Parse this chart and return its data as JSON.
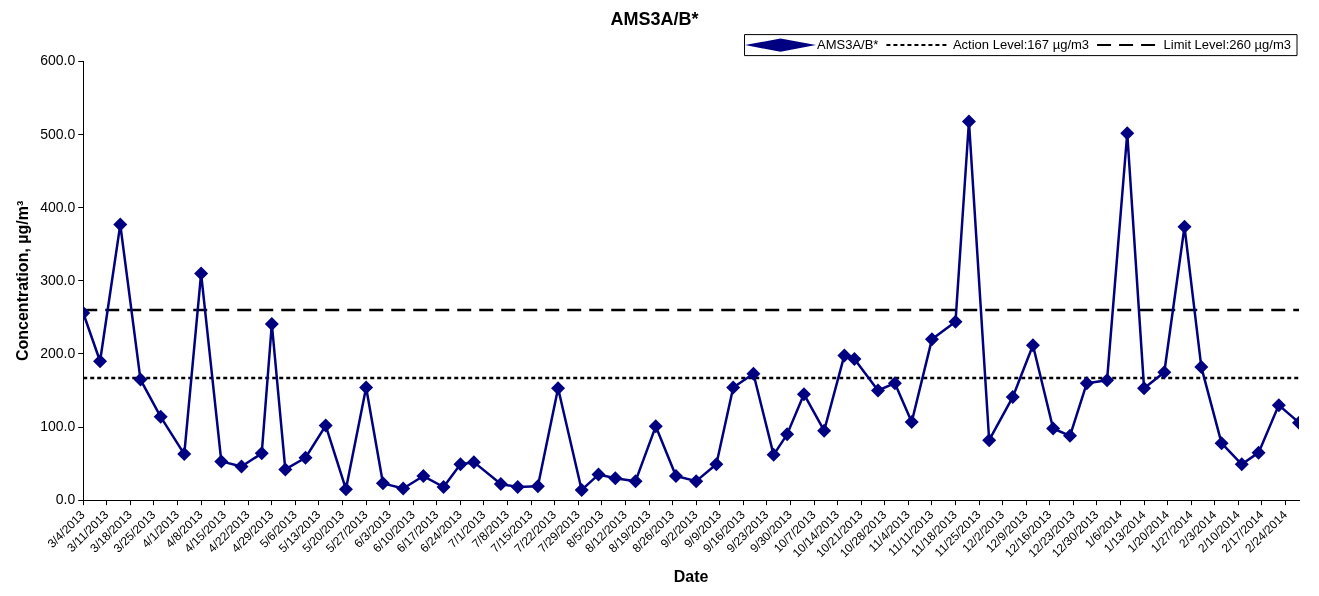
{
  "chart_data": {
    "type": "line",
    "title": "AMS3A/B*",
    "xlabel": "Date",
    "ylabel": "Concentration, µg/m³",
    "series": [
      {
        "name": "AMS3A/B*",
        "color": "#000080",
        "x": [
          "2013-03-04",
          "2013-03-09",
          "2013-03-15",
          "2013-03-21",
          "2013-03-27",
          "2013-04-03",
          "2013-04-08",
          "2013-04-14",
          "2013-04-20",
          "2013-04-26",
          "2013-04-29",
          "2013-05-03",
          "2013-05-09",
          "2013-05-15",
          "2013-05-21",
          "2013-05-27",
          "2013-06-01",
          "2013-06-07",
          "2013-06-13",
          "2013-06-19",
          "2013-06-24",
          "2013-06-28",
          "2013-07-06",
          "2013-07-11",
          "2013-07-17",
          "2013-07-23",
          "2013-07-30",
          "2013-08-04",
          "2013-08-09",
          "2013-08-15",
          "2013-08-21",
          "2013-08-27",
          "2013-09-02",
          "2013-09-08",
          "2013-09-13",
          "2013-09-19",
          "2013-09-25",
          "2013-09-29",
          "2013-10-04",
          "2013-10-10",
          "2013-10-16",
          "2013-10-19",
          "2013-10-26",
          "2013-10-31",
          "2013-11-05",
          "2013-11-11",
          "2013-11-18",
          "2013-11-22",
          "2013-11-28",
          "2013-12-05",
          "2013-12-11",
          "2013-12-17",
          "2013-12-22",
          "2013-12-27",
          "2014-01-02",
          "2014-01-08",
          "2014-01-13",
          "2014-01-19",
          "2014-01-25",
          "2014-01-30",
          "2014-02-05",
          "2014-02-11",
          "2014-02-16",
          "2014-02-22",
          "2014-02-28"
        ],
        "values": [
          256,
          190,
          377,
          165,
          114,
          63,
          310,
          53,
          46,
          64,
          241,
          42,
          58,
          102,
          15,
          154,
          23,
          16,
          33,
          18,
          49,
          52,
          22,
          18,
          19,
          153,
          14,
          35,
          30,
          26,
          101,
          33,
          26,
          49,
          154,
          173,
          62,
          90,
          145,
          95,
          198,
          193,
          150,
          160,
          107,
          220,
          244,
          518,
          82,
          141,
          212,
          98,
          88,
          160,
          164,
          502,
          153,
          175,
          374,
          182,
          78,
          49,
          65,
          130,
          106
        ]
      }
    ],
    "ref_lines": [
      {
        "axis": "y",
        "value": 167,
        "label": "Action Level:167 µg/m3",
        "color": "#000000",
        "line_style": "dotted"
      },
      {
        "axis": "y",
        "value": 260,
        "label": "Limit Level:260 µg/m3",
        "color": "#000000",
        "line_style": "dashed"
      }
    ],
    "xlim": [
      "2013-03-04",
      "2014-02-28"
    ],
    "xticks": [
      {
        "value": "2013-03-04",
        "label": "3/4/2013"
      },
      {
        "value": "2013-03-11",
        "label": "3/11/2013"
      },
      {
        "value": "2013-03-18",
        "label": "3/18/2013"
      },
      {
        "value": "2013-03-25",
        "label": "3/25/2013"
      },
      {
        "value": "2013-04-01",
        "label": "4/1/2013"
      },
      {
        "value": "2013-04-08",
        "label": "4/8/2013"
      },
      {
        "value": "2013-04-15",
        "label": "4/15/2013"
      },
      {
        "value": "2013-04-22",
        "label": "4/22/2013"
      },
      {
        "value": "2013-04-29",
        "label": "4/29/2013"
      },
      {
        "value": "2013-05-06",
        "label": "5/6/2013"
      },
      {
        "value": "2013-05-13",
        "label": "5/13/2013"
      },
      {
        "value": "2013-05-20",
        "label": "5/20/2013"
      },
      {
        "value": "2013-05-27",
        "label": "5/27/2013"
      },
      {
        "value": "2013-06-03",
        "label": "6/3/2013"
      },
      {
        "value": "2013-06-10",
        "label": "6/10/2013"
      },
      {
        "value": "2013-06-17",
        "label": "6/17/2013"
      },
      {
        "value": "2013-06-24",
        "label": "6/24/2013"
      },
      {
        "value": "2013-07-01",
        "label": "7/1/2013"
      },
      {
        "value": "2013-07-08",
        "label": "7/8/2013"
      },
      {
        "value": "2013-07-15",
        "label": "7/15/2013"
      },
      {
        "value": "2013-07-22",
        "label": "7/22/2013"
      },
      {
        "value": "2013-07-29",
        "label": "7/29/2013"
      },
      {
        "value": "2013-08-05",
        "label": "8/5/2013"
      },
      {
        "value": "2013-08-12",
        "label": "8/12/2013"
      },
      {
        "value": "2013-08-19",
        "label": "8/19/2013"
      },
      {
        "value": "2013-08-26",
        "label": "8/26/2013"
      },
      {
        "value": "2013-09-02",
        "label": "9/2/2013"
      },
      {
        "value": "2013-09-09",
        "label": "9/9/2013"
      },
      {
        "value": "2013-09-16",
        "label": "9/16/2013"
      },
      {
        "value": "2013-09-23",
        "label": "9/23/2013"
      },
      {
        "value": "2013-09-30",
        "label": "9/30/2013"
      },
      {
        "value": "2013-10-07",
        "label": "10/7/2013"
      },
      {
        "value": "2013-10-14",
        "label": "10/14/2013"
      },
      {
        "value": "2013-10-21",
        "label": "10/21/2013"
      },
      {
        "value": "2013-10-28",
        "label": "10/28/2013"
      },
      {
        "value": "2013-11-04",
        "label": "11/4/2013"
      },
      {
        "value": "2013-11-11",
        "label": "11/11/2013"
      },
      {
        "value": "2013-11-18",
        "label": "11/18/2013"
      },
      {
        "value": "2013-11-25",
        "label": "11/25/2013"
      },
      {
        "value": "2013-12-02",
        "label": "12/2/2013"
      },
      {
        "value": "2013-12-09",
        "label": "12/9/2013"
      },
      {
        "value": "2013-12-16",
        "label": "12/16/2013"
      },
      {
        "value": "2013-12-23",
        "label": "12/23/2013"
      },
      {
        "value": "2013-12-30",
        "label": "12/30/2013"
      },
      {
        "value": "2014-01-06",
        "label": "1/6/2014"
      },
      {
        "value": "2014-01-13",
        "label": "1/13/2014"
      },
      {
        "value": "2014-01-20",
        "label": "1/20/2014"
      },
      {
        "value": "2014-01-27",
        "label": "1/27/2014"
      },
      {
        "value": "2014-02-03",
        "label": "2/3/2014"
      },
      {
        "value": "2014-02-10",
        "label": "2/10/2014"
      },
      {
        "value": "2014-02-17",
        "label": "2/17/2014"
      },
      {
        "value": "2014-02-24",
        "label": "2/24/2014"
      }
    ],
    "ylim": [
      0,
      600
    ],
    "yticks": [
      {
        "value": 0,
        "label": "0.0"
      },
      {
        "value": 100,
        "label": "100.0"
      },
      {
        "value": 200,
        "label": "200.0"
      },
      {
        "value": 300,
        "label": "300.0"
      },
      {
        "value": 400,
        "label": "400.0"
      },
      {
        "value": 500,
        "label": "500.0"
      },
      {
        "value": 600,
        "label": "600.0"
      }
    ],
    "legend": "top right",
    "marker": "diamond",
    "line_style": "solid"
  }
}
